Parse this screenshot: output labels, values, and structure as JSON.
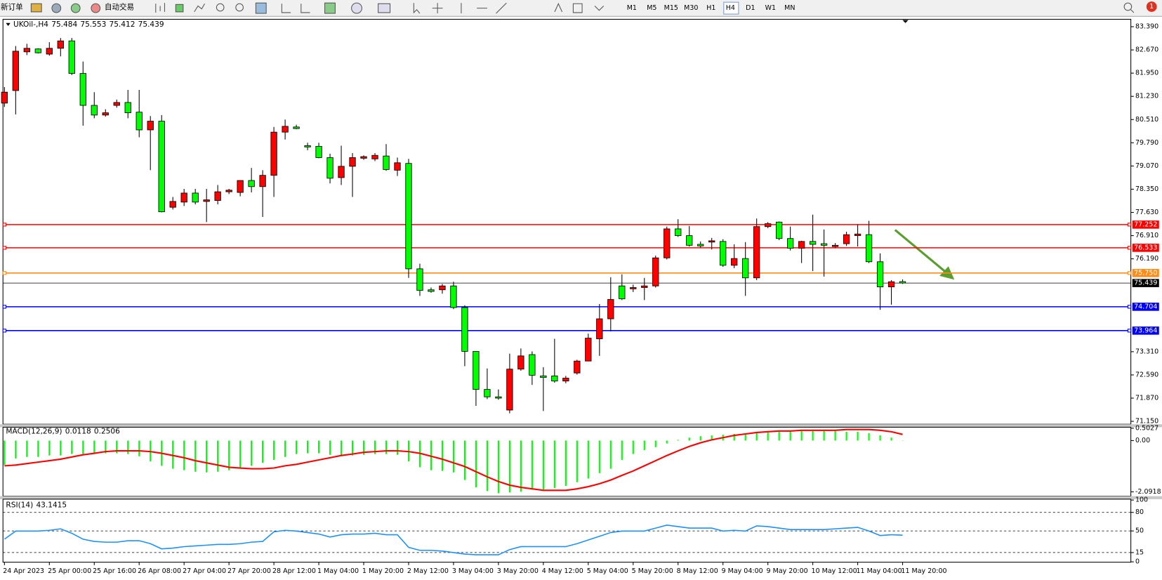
{
  "toolbar": {
    "new_order": "新订单",
    "auto_trading": "自动交易",
    "timeframes": [
      "M1",
      "M5",
      "M15",
      "M30",
      "H1",
      "H4",
      "D1",
      "W1",
      "MN"
    ],
    "selected_timeframe": "H4",
    "notification": "1"
  },
  "chart_data": [
    {
      "type": "candlestick",
      "title": "UKOil-,H4",
      "up_color": "#ff0000",
      "down_color": "#00ff00",
      "categories": [
        "24 Apr 2023",
        null,
        null,
        null,
        "25 Apr 00:00",
        null,
        null,
        null,
        "25 Apr 16:00",
        null,
        null,
        null,
        "26 Apr 08:00",
        null,
        null,
        null,
        "27 Apr 04:00",
        null,
        null,
        null,
        "27 Apr 20:00",
        null,
        null,
        null,
        "28 Apr 12:00",
        null,
        null,
        null,
        "1 May 04:00",
        null,
        null,
        null,
        "1 May 20:00",
        null,
        null,
        null,
        "2 May 12:00",
        null,
        null,
        null,
        "3 May 04:00",
        null,
        null,
        null,
        "3 May 20:00",
        null,
        null,
        null,
        "4 May 12:00",
        null,
        null,
        null,
        "5 May 04:00",
        null,
        null,
        null,
        "5 May 20:00",
        null,
        null,
        null,
        "8 May 12:00",
        null,
        null,
        null,
        "9 May 04:00",
        null,
        null,
        null,
        "9 May 20:00",
        null,
        null,
        null,
        "10 May 12:00",
        null,
        null,
        null,
        "11 May 04:00",
        null,
        null,
        null,
        "11 May 20:00"
      ],
      "open": [
        81.02,
        81.41,
        82.61,
        82.7,
        82.54,
        82.72,
        82.95,
        81.94,
        80.95,
        80.65,
        80.95,
        81.04,
        80.74,
        80.19,
        80.46,
        77.79,
        77.95,
        78.23,
        77.97,
        78.0,
        78.27,
        78.25,
        78.62,
        78.43,
        78.78,
        80.12,
        80.28,
        79.7,
        79.68,
        79.33,
        78.71,
        79.06,
        79.31,
        79.29,
        79.38,
        78.94,
        79.15,
        75.88,
        75.23,
        75.23,
        75.35,
        74.68,
        73.32,
        72.14,
        71.91,
        71.5,
        72.77,
        73.22,
        72.56,
        72.56,
        72.4,
        72.65,
        73.02,
        73.71,
        74.33,
        75.35,
        75.26,
        75.3,
        75.35,
        76.22,
        77.12,
        76.91,
        76.64,
        76.71,
        76.73,
        75.99,
        76.2,
        75.6,
        77.19,
        77.33,
        76.82,
        76.52,
        76.73,
        76.66,
        76.57,
        76.66,
        76.91,
        76.94,
        76.1,
        75.32,
        75.484
      ],
      "high": [
        81.52,
        82.79,
        82.86,
        82.72,
        82.91,
        83.04,
        83.04,
        82.31,
        81.36,
        80.83,
        81.13,
        81.43,
        81.43,
        80.62,
        80.65,
        78.11,
        78.36,
        78.36,
        78.36,
        78.48,
        78.36,
        78.62,
        79.01,
        78.94,
        80.28,
        80.51,
        80.35,
        79.79,
        79.79,
        79.45,
        79.7,
        79.47,
        79.4,
        79.47,
        79.75,
        79.33,
        79.29,
        76.04,
        75.3,
        75.41,
        75.48,
        74.75,
        73.32,
        72.79,
        72.14,
        73.25,
        73.41,
        73.32,
        72.83,
        73.71,
        72.56,
        73.06,
        73.87,
        74.79,
        75.62,
        75.71,
        75.39,
        75.6,
        76.29,
        77.19,
        77.42,
        77.21,
        76.73,
        76.84,
        76.8,
        76.64,
        76.71,
        77.44,
        77.33,
        77.35,
        77.19,
        76.75,
        77.56,
        77.1,
        76.68,
        77.03,
        77.26,
        77.37,
        76.36,
        75.53,
        75.553
      ],
      "low": [
        80.9,
        80.67,
        82.51,
        82.56,
        82.49,
        82.47,
        81.89,
        80.32,
        80.55,
        80.6,
        80.88,
        80.55,
        79.96,
        78.94,
        77.63,
        77.72,
        77.83,
        77.88,
        77.33,
        77.88,
        78.2,
        78.13,
        78.25,
        77.49,
        78.11,
        79.89,
        80.21,
        79.56,
        79.31,
        78.53,
        78.48,
        78.11,
        79.26,
        79.22,
        78.92,
        78.76,
        75.6,
        75.04,
        75.14,
        75.11,
        74.63,
        72.86,
        71.63,
        71.84,
        71.82,
        71.4,
        72.72,
        72.28,
        71.47,
        72.35,
        72.33,
        72.6,
        73.02,
        73.18,
        73.94,
        74.91,
        75.16,
        74.91,
        75.3,
        76.17,
        76.87,
        76.57,
        76.54,
        76.48,
        75.94,
        75.9,
        75.04,
        75.53,
        77.14,
        76.77,
        76.45,
        76.06,
        75.81,
        75.64,
        76.52,
        76.59,
        76.57,
        76.06,
        74.61,
        74.77,
        75.412
      ],
      "close": [
        81.36,
        82.63,
        82.72,
        82.58,
        82.72,
        82.95,
        81.94,
        80.95,
        80.65,
        80.72,
        81.04,
        80.72,
        80.19,
        80.46,
        77.65,
        77.97,
        78.23,
        77.95,
        78.02,
        78.27,
        78.32,
        78.62,
        78.43,
        78.78,
        80.12,
        80.3,
        80.23,
        79.66,
        79.33,
        78.69,
        79.06,
        79.33,
        79.36,
        79.4,
        78.96,
        79.17,
        75.88,
        75.21,
        75.18,
        75.35,
        74.68,
        73.32,
        72.14,
        71.91,
        71.87,
        72.77,
        73.18,
        72.58,
        72.51,
        72.4,
        72.49,
        73.02,
        73.73,
        74.33,
        74.93,
        74.95,
        75.3,
        75.35,
        76.22,
        77.12,
        76.91,
        76.61,
        76.59,
        76.75,
        75.99,
        76.2,
        75.6,
        77.19,
        77.28,
        76.82,
        76.52,
        76.73,
        76.64,
        76.61,
        76.61,
        76.94,
        76.96,
        76.1,
        75.32,
        75.48,
        75.439
      ],
      "ylim": [
        71.06,
        83.62
      ],
      "yticks": [
        {
          "value": 83.39,
          "label": "83.390"
        },
        {
          "value": 82.67,
          "label": "82.670"
        },
        {
          "value": 81.95,
          "label": "81.950"
        },
        {
          "value": 81.23,
          "label": "81.230"
        },
        {
          "value": 80.51,
          "label": "80.510"
        },
        {
          "value": 79.79,
          "label": "79.790"
        },
        {
          "value": 79.07,
          "label": "79.070"
        },
        {
          "value": 78.35,
          "label": "78.350"
        },
        {
          "value": 77.63,
          "label": "77.630"
        },
        {
          "value": 76.91,
          "label": "76.910"
        },
        {
          "value": 76.19,
          "label": "76.190"
        },
        {
          "value": 73.31,
          "label": "73.310"
        },
        {
          "value": 72.59,
          "label": "72.590"
        },
        {
          "value": 71.87,
          "label": "71.870"
        },
        {
          "value": 71.15,
          "label": "71.150"
        }
      ],
      "hlines": [
        {
          "value": 77.252,
          "color": "#ff0000"
        },
        {
          "value": 76.533,
          "color": "#ff0000"
        },
        {
          "value": 75.75,
          "label": "75.750",
          "color": "#ff8c1a"
        },
        {
          "value": 74.704,
          "color": "#0000ff"
        },
        {
          "value": 73.964,
          "color": "#0000ff"
        }
      ],
      "price_line_color": "#000000"
    },
    {
      "type": "macd",
      "title": "MACD(12,26,9)",
      "series": [
        {
          "style": "bar",
          "color": "#00ff00",
          "values": [
            -1.0,
            -0.73,
            -0.67,
            -0.67,
            -0.61,
            -0.61,
            -0.55,
            -0.55,
            -0.55,
            -0.52,
            -0.52,
            -0.55,
            -0.64,
            -0.85,
            -1.03,
            -1.15,
            -1.21,
            -1.27,
            -1.3,
            -1.27,
            -1.21,
            -1.15,
            -1.03,
            -0.91,
            -0.79,
            -0.67,
            -0.55,
            -0.52,
            -0.52,
            -0.58,
            -0.61,
            -0.61,
            -0.58,
            -0.55,
            -0.55,
            -0.58,
            -0.85,
            -1.09,
            -1.21,
            -1.24,
            -1.3,
            -1.61,
            -1.91,
            -2.06,
            -2.15,
            -2.12,
            -2.09,
            -2.0,
            -2.0,
            -1.94,
            -1.85,
            -1.7,
            -1.55,
            -1.33,
            -1.15,
            -0.79,
            -0.55,
            -0.39,
            -0.27,
            -0.12,
            0.03,
            0.12,
            0.18,
            0.21,
            0.24,
            0.27,
            0.27,
            0.3,
            0.33,
            0.36,
            0.39,
            0.39,
            0.39,
            0.39,
            0.39,
            0.36,
            0.36,
            0.3,
            0.21,
            0.12,
            0.0118
          ]
        },
        {
          "style": "line",
          "color": "#ff0000",
          "values": [
            -1.03,
            -1.0,
            -0.94,
            -0.88,
            -0.82,
            -0.76,
            -0.67,
            -0.58,
            -0.52,
            -0.45,
            -0.42,
            -0.42,
            -0.42,
            -0.45,
            -0.52,
            -0.61,
            -0.7,
            -0.82,
            -0.91,
            -1.0,
            -1.09,
            -1.12,
            -1.15,
            -1.15,
            -1.12,
            -1.03,
            -0.97,
            -0.88,
            -0.79,
            -0.7,
            -0.61,
            -0.55,
            -0.48,
            -0.45,
            -0.42,
            -0.42,
            -0.45,
            -0.52,
            -0.64,
            -0.76,
            -0.91,
            -1.06,
            -1.27,
            -1.48,
            -1.67,
            -1.82,
            -1.91,
            -1.97,
            -2.03,
            -2.03,
            -2.03,
            -1.97,
            -1.88,
            -1.76,
            -1.61,
            -1.42,
            -1.24,
            -1.03,
            -0.82,
            -0.61,
            -0.42,
            -0.24,
            -0.09,
            0.03,
            0.12,
            0.21,
            0.27,
            0.33,
            0.36,
            0.39,
            0.39,
            0.42,
            0.42,
            0.42,
            0.42,
            0.45,
            0.45,
            0.45,
            0.42,
            0.36,
            0.2506
          ]
        }
      ],
      "ylim": [
        -2.27,
        0.545
      ],
      "yticks": [
        0.5027,
        {
          "value": 0,
          "label": "0.00"
        },
        -2.0918
      ]
    },
    {
      "type": "line",
      "title": "RSI(14)",
      "color": "#1e90ff",
      "values": [
        36.6,
        49.8,
        49.8,
        49.8,
        51.0,
        53.4,
        46.2,
        36.6,
        33.0,
        31.8,
        31.8,
        34.2,
        34.2,
        29.4,
        21.0,
        22.2,
        24.6,
        25.8,
        27.0,
        28.2,
        28.2,
        29.4,
        31.8,
        33.0,
        48.6,
        51.0,
        49.8,
        47.4,
        45.0,
        40.2,
        43.8,
        45.0,
        45.0,
        46.2,
        43.8,
        43.8,
        23.4,
        18.6,
        18.6,
        17.4,
        15.0,
        12.6,
        11.4,
        11.4,
        11.4,
        19.8,
        24.6,
        24.6,
        24.6,
        24.6,
        24.6,
        29.4,
        35.4,
        41.4,
        47.4,
        49.8,
        49.8,
        49.8,
        54.6,
        59.4,
        57.0,
        54.6,
        54.6,
        54.6,
        49.8,
        51.0,
        49.8,
        58.2,
        57.0,
        54.6,
        52.2,
        52.2,
        52.2,
        52.2,
        53.4,
        54.6,
        55.8,
        49.8,
        42.6,
        43.8,
        43.1415
      ],
      "ylim": [
        0,
        100
      ],
      "yticks": [
        100,
        80,
        50,
        15,
        0
      ],
      "levels": [
        80,
        50,
        15
      ]
    }
  ]
}
